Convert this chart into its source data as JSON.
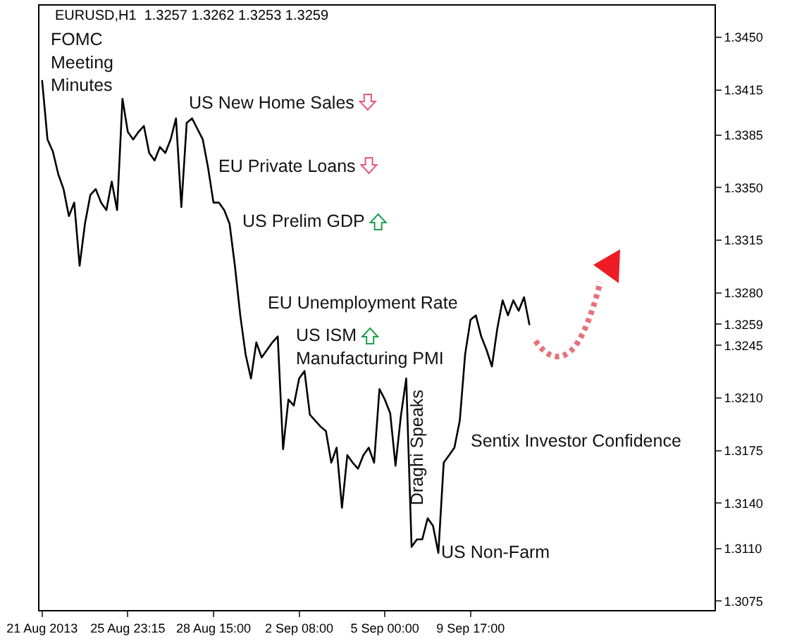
{
  "chart_data": {
    "type": "line",
    "title": "EURUSD,H1  1.3257 1.3262 1.3253 1.3259",
    "categories": [
      "21 Aug 2013",
      null,
      null,
      null,
      null,
      null,
      null,
      null,
      null,
      null,
      null,
      null,
      null,
      null,
      null,
      null,
      "25 Aug 23:15",
      null,
      null,
      null,
      null,
      null,
      null,
      null,
      null,
      null,
      null,
      null,
      null,
      null,
      null,
      null,
      "28 Aug 15:00",
      null,
      null,
      null,
      null,
      null,
      null,
      null,
      null,
      null,
      null,
      null,
      null,
      null,
      null,
      null,
      "2 Sep 08:00",
      null,
      null,
      null,
      null,
      null,
      null,
      null,
      null,
      null,
      null,
      null,
      null,
      null,
      null,
      null,
      "5 Sep 00:00",
      null,
      null,
      null,
      null,
      null,
      null,
      null,
      null,
      null,
      null,
      null,
      null,
      null,
      null,
      null,
      "9 Sep 17:00",
      null,
      null,
      null,
      null,
      null,
      null,
      null,
      null,
      null,
      null,
      null
    ],
    "series": [
      {
        "color": "#000000",
        "values": [
          1.3421,
          1.3382,
          1.3374,
          1.3359,
          1.3349,
          1.3331,
          1.334,
          1.3298,
          1.3326,
          1.3345,
          1.3349,
          1.334,
          1.3335,
          1.3354,
          1.3335,
          1.3409,
          1.3387,
          1.3382,
          1.3387,
          1.3391,
          1.3373,
          1.3368,
          1.3377,
          1.3373,
          1.3382,
          1.3396,
          1.3337,
          1.3393,
          1.3396,
          1.3389,
          1.3382,
          1.3363,
          1.334,
          1.334,
          1.3335,
          1.3326,
          1.3298,
          1.3265,
          1.3239,
          1.3223,
          1.3247,
          1.3237,
          1.3242,
          1.3247,
          1.3251,
          1.3176,
          1.3209,
          1.3205,
          1.3223,
          1.3228,
          1.3199,
          1.3195,
          1.3191,
          1.3188,
          1.3167,
          1.3177,
          1.3137,
          1.3172,
          1.3167,
          1.3163,
          1.3172,
          1.3177,
          1.3167,
          1.3216,
          1.3209,
          1.32,
          1.3165,
          1.3198,
          1.3223,
          1.3111,
          1.3116,
          1.3116,
          1.313,
          1.3125,
          1.3107,
          1.3167,
          1.3172,
          1.3177,
          1.3195,
          1.3239,
          1.3262,
          1.3265,
          1.3251,
          1.3242,
          1.3231,
          1.3256,
          1.3275,
          1.3265,
          1.3275,
          1.3268,
          1.3277,
          1.3259
        ]
      }
    ],
    "ylim": [
      1.3069,
      1.3471
    ],
    "yticks": [
      {
        "value": 1.3075,
        "label": "1.3075"
      },
      {
        "value": 1.311,
        "label": "1.3110"
      },
      {
        "value": 1.314,
        "label": "1.3140"
      },
      {
        "value": 1.3175,
        "label": "1.3175"
      },
      {
        "value": 1.321,
        "label": "1.3210"
      },
      {
        "value": 1.3245,
        "label": "1.3245"
      },
      {
        "value": 1.3259,
        "label": "1.3259"
      },
      {
        "value": 1.328,
        "label": "1.3280"
      },
      {
        "value": 1.3315,
        "label": "1.3315"
      },
      {
        "value": 1.335,
        "label": "1.3350"
      },
      {
        "value": 1.3385,
        "label": "1.3385"
      },
      {
        "value": 1.3415,
        "label": "1.3415"
      },
      {
        "value": 1.345,
        "label": "1.3450"
      }
    ],
    "annotations": [
      "FOMC\nMeeting\nMinutes",
      "US New Home Sales",
      "EU Private Loans",
      "US Prelim GDP",
      "EU Unemployment Rate",
      "US ISM\nManufacturing PMI",
      "Draghi Speaks",
      "Sentix Investor Confidence",
      "US Non-Farm"
    ],
    "grid": false,
    "marker": "none",
    "line_style": "solid"
  }
}
